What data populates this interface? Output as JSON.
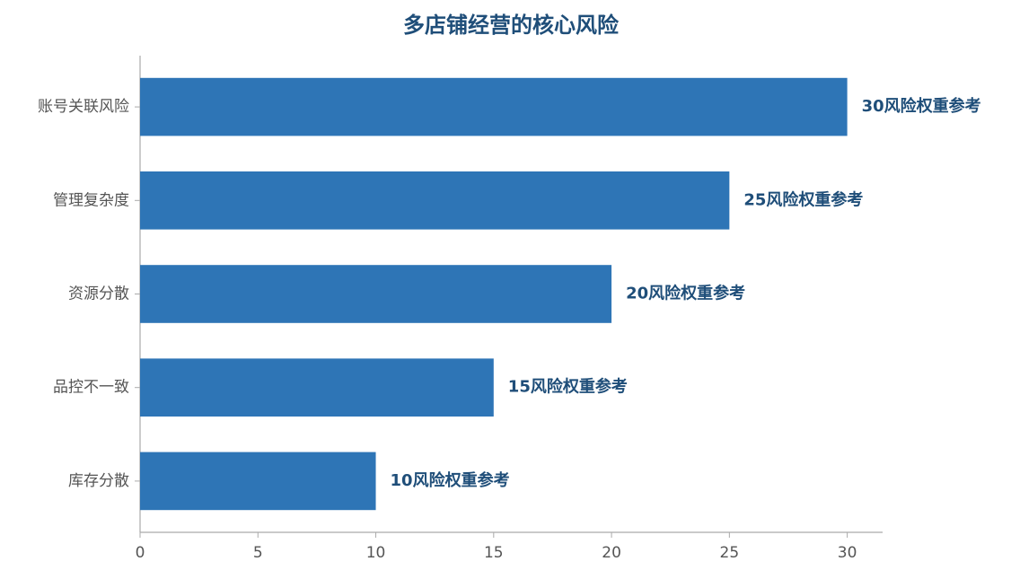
{
  "chart_data": {
    "type": "barh",
    "title": "多店铺经营的核心风险",
    "categories": [
      "账号关联风险",
      "管理复杂度",
      "资源分散",
      "品控不一致",
      "库存分散"
    ],
    "values": [
      30,
      25,
      20,
      15,
      10
    ],
    "value_labels": [
      "30风险权重参考",
      "25风险权重参考",
      "20风险权重参考",
      "15风险权重参考",
      "10风险权重参考"
    ],
    "color": "#2e75b6",
    "xlim": [
      0,
      31.5
    ],
    "xticks": [
      0,
      5,
      10,
      15,
      20,
      25,
      30
    ]
  }
}
